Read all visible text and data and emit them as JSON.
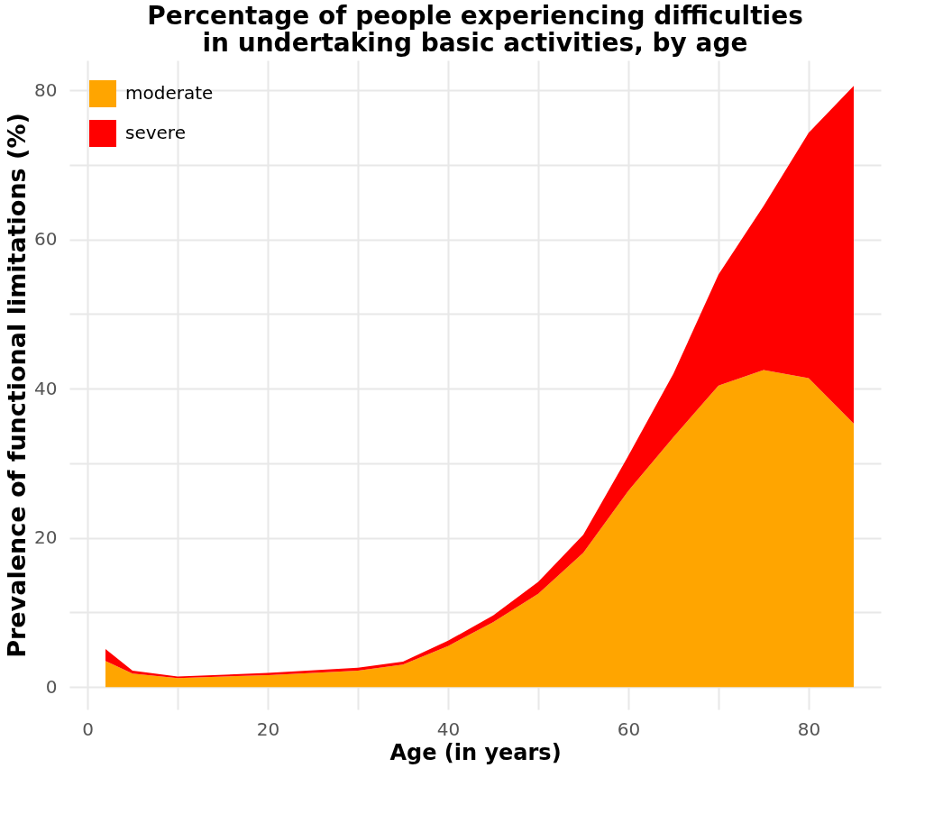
{
  "chart_data": {
    "type": "area",
    "title": "Percentage of people experiencing difficulties\nin undertaking basic activities, by age",
    "xlabel": "Age (in years)",
    "ylabel": "Prevalence of functional limitations (%)",
    "x": [
      2,
      5,
      10,
      20,
      30,
      35,
      40,
      45,
      50,
      55,
      60,
      65,
      70,
      75,
      80,
      85
    ],
    "stacked": true,
    "series": [
      {
        "name": "moderate",
        "color": "#ffa500",
        "values": [
          3.5,
          1.8,
          1.2,
          1.6,
          2.2,
          3.0,
          5.5,
          8.7,
          12.5,
          18.0,
          26.3,
          33.5,
          40.4,
          42.5,
          41.4,
          35.3
        ]
      },
      {
        "name": "severe",
        "color": "#ff0000",
        "values": [
          1.6,
          0.4,
          0.2,
          0.3,
          0.4,
          0.4,
          0.7,
          0.9,
          1.6,
          2.4,
          4.7,
          8.5,
          14.9,
          22.0,
          32.9,
          45.3
        ]
      }
    ],
    "xlim": [
      -2,
      88
    ],
    "ylim": [
      -3,
      84
    ],
    "xticks": [
      0,
      {
        "value": 10,
        "label": null
      },
      20,
      {
        "value": 30,
        "label": null
      },
      40,
      {
        "value": 50,
        "label": null
      },
      60,
      {
        "value": 70,
        "label": null
      },
      80
    ],
    "yticks": [
      0,
      {
        "value": 10,
        "label": null
      },
      20,
      {
        "value": 30,
        "label": null
      },
      40,
      {
        "value": 50,
        "label": null
      },
      60,
      {
        "value": 70,
        "label": null
      },
      80
    ],
    "grid": true,
    "legend": "top left"
  }
}
